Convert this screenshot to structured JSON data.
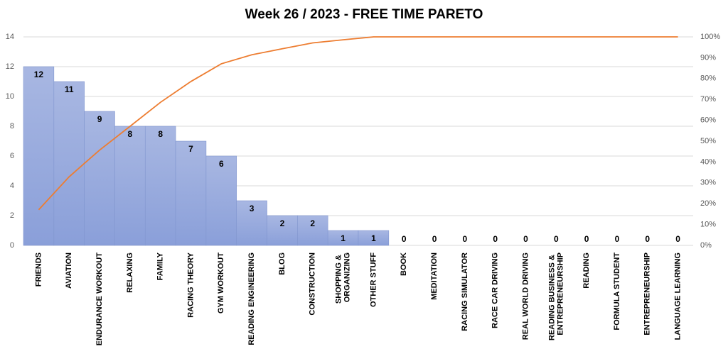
{
  "chart_data": {
    "type": "pareto",
    "title": "Week 26 / 2023 - FREE TIME PARETO",
    "categories": [
      "FRIENDS",
      "AVIATION",
      "ENDURANCE WORKOUT",
      "RELAXING",
      "FAMILY",
      "RACING THEORY",
      "GYM WORKOUT",
      "READING ENGINEERING",
      "BLOG",
      "CONSTRUCTION",
      "SHOPPING &\nORGANIZING",
      "OTHER STUFF",
      "BOOK",
      "MEDITATION",
      "RACING SIMULATOR",
      "RACE CAR DRIVING",
      "REAL WORLD DRIVING",
      "READING BUSINESS &\nENTREPRENEURSHIP",
      "READING",
      "FORMULA STUDENT",
      "ENTREPRENEURSHIP",
      "LANGUAGE LEARNING"
    ],
    "series": [
      {
        "type": "bar",
        "color": "#94a7dc",
        "values": [
          12,
          11,
          9,
          8,
          8,
          7,
          6,
          3,
          2,
          2,
          1,
          1,
          0,
          0,
          0,
          0,
          0,
          0,
          0,
          0,
          0,
          0
        ]
      },
      {
        "type": "line",
        "axis": "y2",
        "color": "#ed7d31",
        "values": [
          17.1,
          32.9,
          45.7,
          57.1,
          68.6,
          78.6,
          87.1,
          91.4,
          94.3,
          97.1,
          98.6,
          100,
          100,
          100,
          100,
          100,
          100,
          100,
          100,
          100,
          100,
          100
        ]
      }
    ],
    "ylim": [
      0,
      14
    ],
    "yticks": [
      0,
      2,
      4,
      6,
      8,
      10,
      12,
      14
    ],
    "y2lim": [
      0,
      100
    ],
    "y2ticks": [
      {
        "value": 0,
        "label": "0%"
      },
      {
        "value": 10,
        "label": "10%"
      },
      {
        "value": 20,
        "label": "20%"
      },
      {
        "value": 30,
        "label": "30%"
      },
      {
        "value": 40,
        "label": "40%"
      },
      {
        "value": 50,
        "label": "50%"
      },
      {
        "value": 60,
        "label": "60%"
      },
      {
        "value": 70,
        "label": "70%"
      },
      {
        "value": 80,
        "label": "80%"
      },
      {
        "value": 90,
        "label": "90%"
      },
      {
        "value": 100,
        "label": "100%"
      }
    ],
    "grid": true
  }
}
